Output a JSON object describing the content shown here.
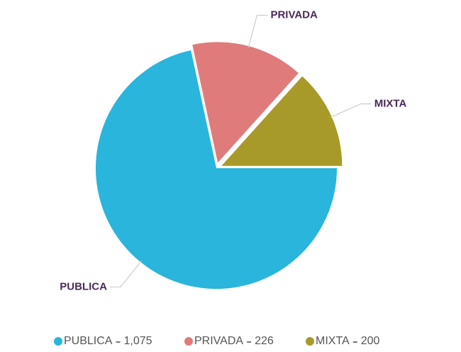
{
  "chart_data": {
    "type": "pie",
    "categories": [
      "PUBLICA",
      "PRIVADA",
      "MIXTA"
    ],
    "values": [
      1075,
      226,
      200
    ],
    "value_labels": [
      "1,075",
      "226",
      "200"
    ],
    "colors": [
      "#29b5dc",
      "#e07b7b",
      "#a89a28"
    ]
  }
}
